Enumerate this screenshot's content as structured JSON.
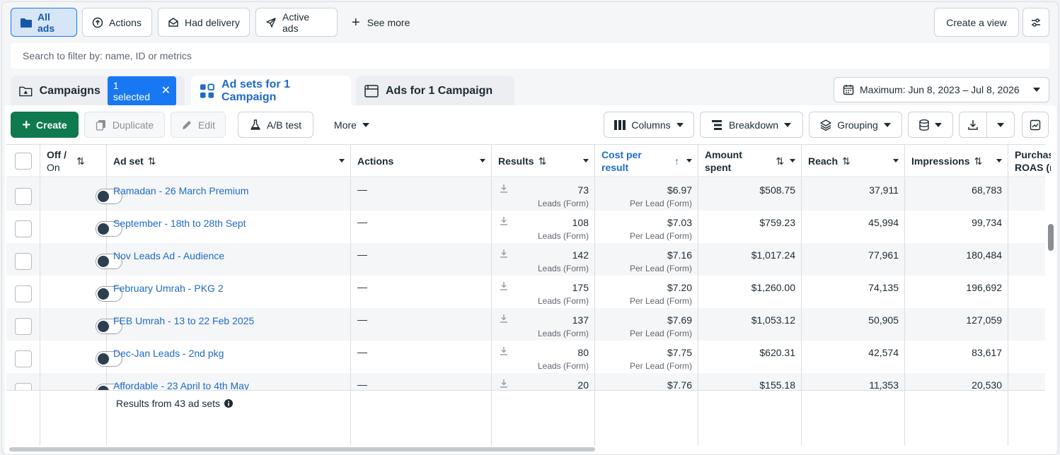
{
  "filters": {
    "all_ads": "All ads",
    "actions": "Actions",
    "had_delivery": "Had delivery",
    "active_ads": "Active ads",
    "see_more": "See more",
    "create_view": "Create a view"
  },
  "search": {
    "placeholder": "Search to filter by: name, ID or metrics"
  },
  "tabs": {
    "campaigns": "Campaigns",
    "selected_chip": "1 selected",
    "adsets": "Ad sets for 1 Campaign",
    "ads": "Ads for 1 Campaign"
  },
  "date_range": "Maximum: Jun 8, 2023 – Jul 8, 2026",
  "toolbar": {
    "create": "Create",
    "duplicate": "Duplicate",
    "edit": "Edit",
    "ab_test": "A/B test",
    "more": "More",
    "columns": "Columns",
    "breakdown": "Breakdown",
    "grouping": "Grouping"
  },
  "headers": {
    "off_on_1": "Off /",
    "off_on_2": "On",
    "ad_set": "Ad set",
    "actions": "Actions",
    "results": "Results",
    "cost_1": "Cost per",
    "cost_2": "result",
    "amount_1": "Amount",
    "amount_2": "spent",
    "reach": "Reach",
    "impressions": "Impressions",
    "purchase_1": "Purchase",
    "purchase_2": "ROAS (re"
  },
  "rows": [
    {
      "name": "Ramadan - 26 March Premium",
      "actions": "—",
      "results": "73",
      "results_sub": "Leads (Form)",
      "cost": "$6.97",
      "cost_sub": "Per Lead (Form)",
      "amount": "$508.75",
      "reach": "37,911",
      "impressions": "68,783"
    },
    {
      "name": "September - 18th to 28th Sept",
      "actions": "—",
      "results": "108",
      "results_sub": "Leads (Form)",
      "cost": "$7.03",
      "cost_sub": "Per Lead (Form)",
      "amount": "$759.23",
      "reach": "45,994",
      "impressions": "99,734"
    },
    {
      "name": "Nov Leads Ad - Audience",
      "actions": "—",
      "results": "142",
      "results_sub": "Leads (Form)",
      "cost": "$7.16",
      "cost_sub": "Per Lead (Form)",
      "amount": "$1,017.24",
      "reach": "77,961",
      "impressions": "180,484"
    },
    {
      "name": "February Umrah - PKG 2",
      "actions": "—",
      "results": "175",
      "results_sub": "Leads (Form)",
      "cost": "$7.20",
      "cost_sub": "Per Lead (Form)",
      "amount": "$1,260.00",
      "reach": "74,135",
      "impressions": "196,692"
    },
    {
      "name": "FEB Umrah - 13 to 22 Feb 2025",
      "actions": "—",
      "results": "137",
      "results_sub": "Leads (Form)",
      "cost": "$7.69",
      "cost_sub": "Per Lead (Form)",
      "amount": "$1,053.12",
      "reach": "50,905",
      "impressions": "127,059"
    },
    {
      "name": "Dec-Jan Leads - 2nd pkg",
      "actions": "—",
      "results": "80",
      "results_sub": "Leads (Form)",
      "cost": "$7.75",
      "cost_sub": "Per Lead (Form)",
      "amount": "$620.31",
      "reach": "42,574",
      "impressions": "83,617"
    },
    {
      "name": "Affordable - 23 April to 4th May",
      "actions": "—",
      "results": "20",
      "results_sub": "",
      "cost": "$7.76",
      "cost_sub": "",
      "amount": "$155.18",
      "reach": "11,353",
      "impressions": "20,530"
    }
  ],
  "footer": {
    "results_text": "Results from 43 ad sets"
  },
  "colors": {
    "accent": "#1877f2",
    "create": "#0f7a4e",
    "link": "#1f6bc7"
  },
  "icons": [
    "folder-icon",
    "actions-arrow-icon",
    "envelope-icon",
    "send-icon",
    "plus-icon",
    "settings-sliders-icon",
    "campaign-folder-icon",
    "close-icon",
    "adsets-grid-icon",
    "ad-window-icon",
    "calendar-icon",
    "duplicate-icon",
    "pencil-icon",
    "flask-icon",
    "columns-icon",
    "breakdown-icon",
    "layers-icon",
    "database-icon",
    "download-icon",
    "chart-icon",
    "info-icon"
  ]
}
